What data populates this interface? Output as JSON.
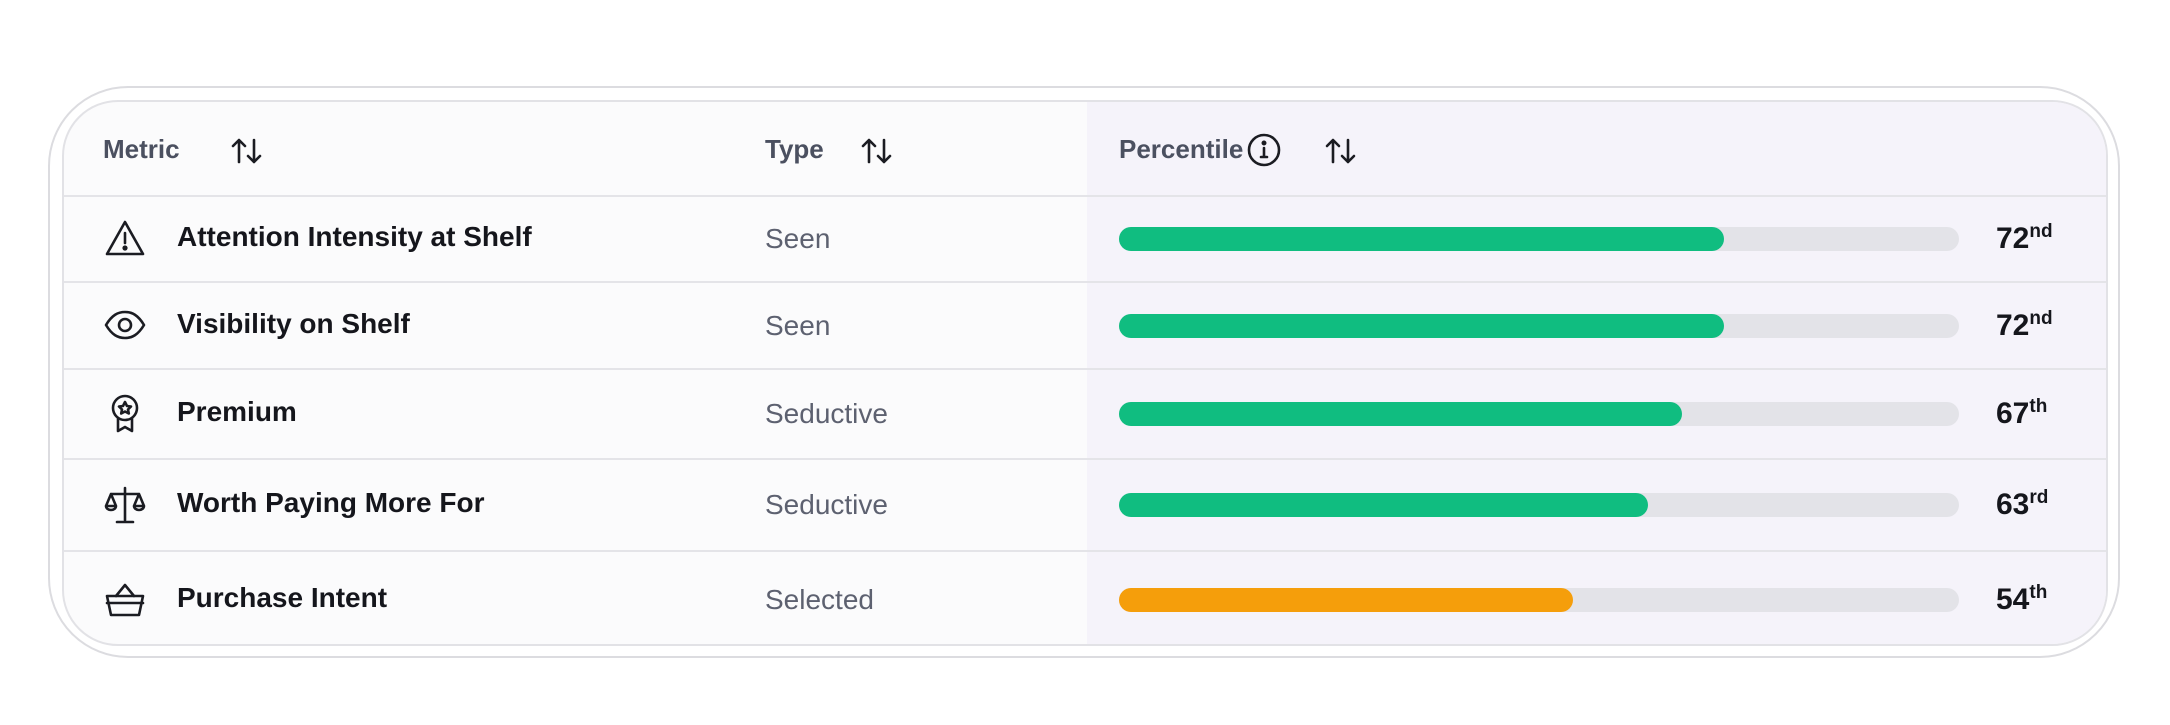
{
  "table": {
    "header": {
      "metric": "Metric",
      "type": "Type",
      "percentile": "Percentile"
    },
    "rows": [
      {
        "metric": "Attention Intensity at Shelf",
        "type": "Seen",
        "percentile": 72,
        "ordinal": "nd",
        "color": "#10bd80"
      },
      {
        "metric": "Visibility on Shelf",
        "type": "Seen",
        "percentile": 72,
        "ordinal": "nd",
        "color": "#10bd80"
      },
      {
        "metric": "Premium",
        "type": "Seductive",
        "percentile": 67,
        "ordinal": "th",
        "color": "#10bd80"
      },
      {
        "metric": "Worth Paying More For",
        "type": "Seductive",
        "percentile": 63,
        "ordinal": "rd",
        "color": "#10bd80"
      },
      {
        "metric": "Purchase Intent",
        "type": "Selected",
        "percentile": 54,
        "ordinal": "th",
        "color": "#f59e0b"
      }
    ]
  }
}
